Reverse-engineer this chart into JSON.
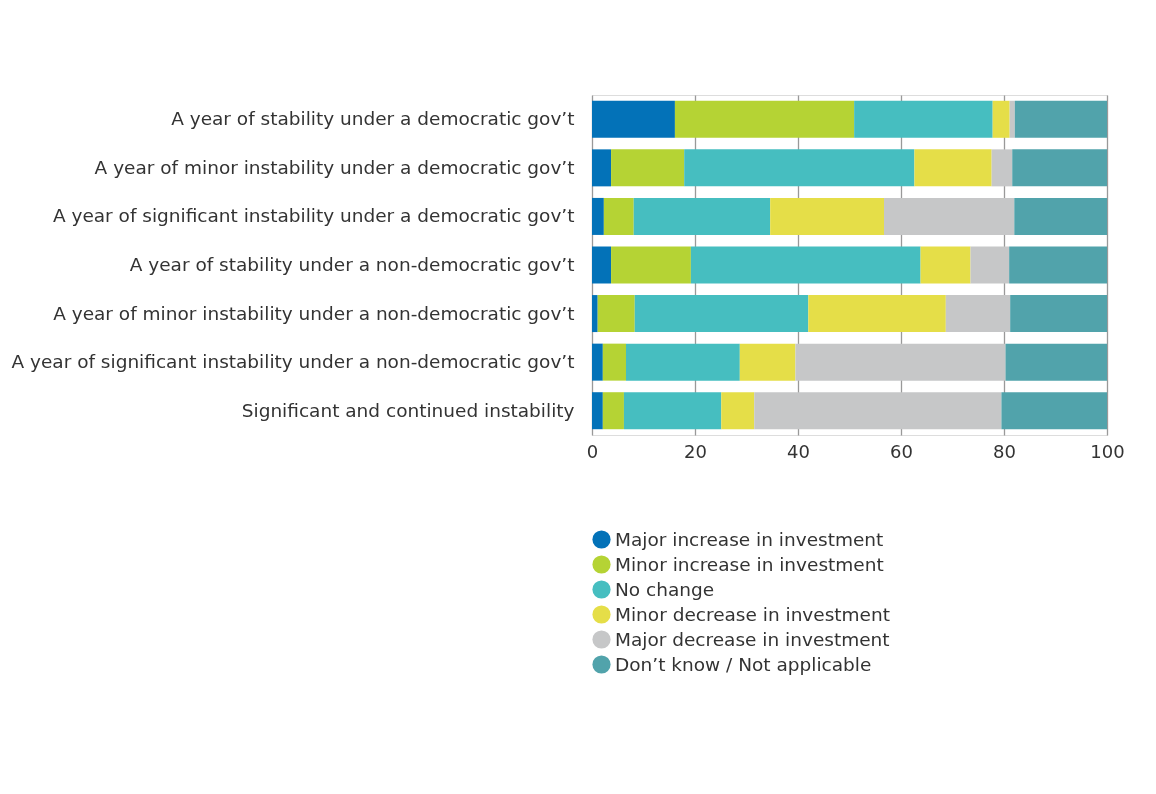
{
  "chart_data": {
    "type": "bar",
    "orientation": "horizontal",
    "stacked": true,
    "categories": [
      "A year of stability under a democratic gov’t",
      "A year of minor instability under a democratic gov’t",
      "A year of significant instability under a democratic gov’t",
      "A year of stability under a non-democratic gov’t",
      "A year of minor instability under a non-democratic gov’t",
      "A year of significant instability under a non-democratic gov’t",
      "Significant and continued instability"
    ],
    "series": [
      {
        "name": "Major increase in investment",
        "color": "#0372b8",
        "values": [
          16.1,
          3.7,
          2.3,
          3.7,
          1.1,
          2.1,
          2.1
        ]
      },
      {
        "name": "Minor increase in investment",
        "color": "#b5d334",
        "values": [
          34.8,
          14.2,
          5.8,
          15.5,
          7.2,
          4.5,
          4.1
        ]
      },
      {
        "name": "No change",
        "color": "#46bec0",
        "values": [
          26.9,
          44.7,
          26.5,
          44.6,
          33.7,
          22.1,
          18.9
        ]
      },
      {
        "name": "Minor decrease in investment",
        "color": "#e5de48",
        "values": [
          3.3,
          15.0,
          22.1,
          9.7,
          26.7,
          10.8,
          6.4
        ]
      },
      {
        "name": "Major decrease in investment",
        "color": "#c6c7c8",
        "values": [
          1.0,
          4.0,
          25.3,
          7.5,
          12.5,
          40.8,
          48.0
        ]
      },
      {
        "name": "Don’t know / Not applicable",
        "color": "#51a3ab",
        "values": [
          17.9,
          18.4,
          18.0,
          19.0,
          18.8,
          19.7,
          20.5
        ]
      }
    ],
    "xlim": [
      0,
      100
    ],
    "xticks": [
      0,
      20,
      40,
      60,
      80,
      100
    ],
    "grid": "x",
    "legend": "bottom"
  }
}
